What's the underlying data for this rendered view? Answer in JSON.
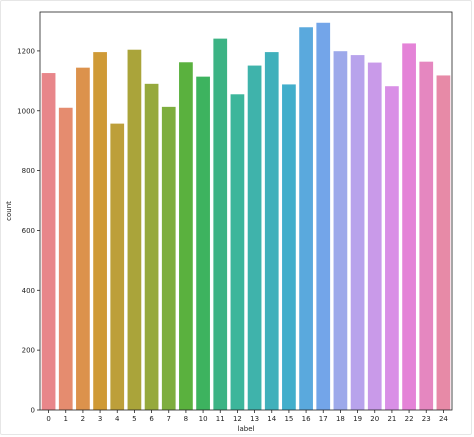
{
  "chart_data": {
    "type": "bar",
    "xlabel": "label",
    "ylabel": "count",
    "ylim": [
      0,
      1330
    ],
    "yticks": [
      0,
      200,
      400,
      600,
      800,
      1000,
      1200
    ],
    "grid": false,
    "categories": [
      "0",
      "1",
      "2",
      "3",
      "4",
      "5",
      "6",
      "7",
      "8",
      "10",
      "11",
      "12",
      "13",
      "14",
      "15",
      "16",
      "17",
      "18",
      "19",
      "20",
      "21",
      "22",
      "23",
      "24"
    ],
    "values": [
      1126,
      1010,
      1144,
      1196,
      957,
      1204,
      1090,
      1013,
      1162,
      1114,
      1241,
      1055,
      1151,
      1196,
      1088,
      1279,
      1294,
      1199,
      1186,
      1161,
      1082,
      1225,
      1164,
      1118
    ],
    "colors": [
      "#e8868a",
      "#e58c6f",
      "#dc924c",
      "#cf9a36",
      "#bd9f3a",
      "#aaa43a",
      "#96a93c",
      "#7eae3e",
      "#5ab13e",
      "#3db35f",
      "#3cb384",
      "#3db69b",
      "#3fb3ab",
      "#40b0bb",
      "#42aecb",
      "#5aa9dd",
      "#73a5e9",
      "#9da9ea",
      "#b8a3ec",
      "#c99ae9",
      "#d98fe6",
      "#e483d7",
      "#e587c0",
      "#e78aa7"
    ]
  }
}
